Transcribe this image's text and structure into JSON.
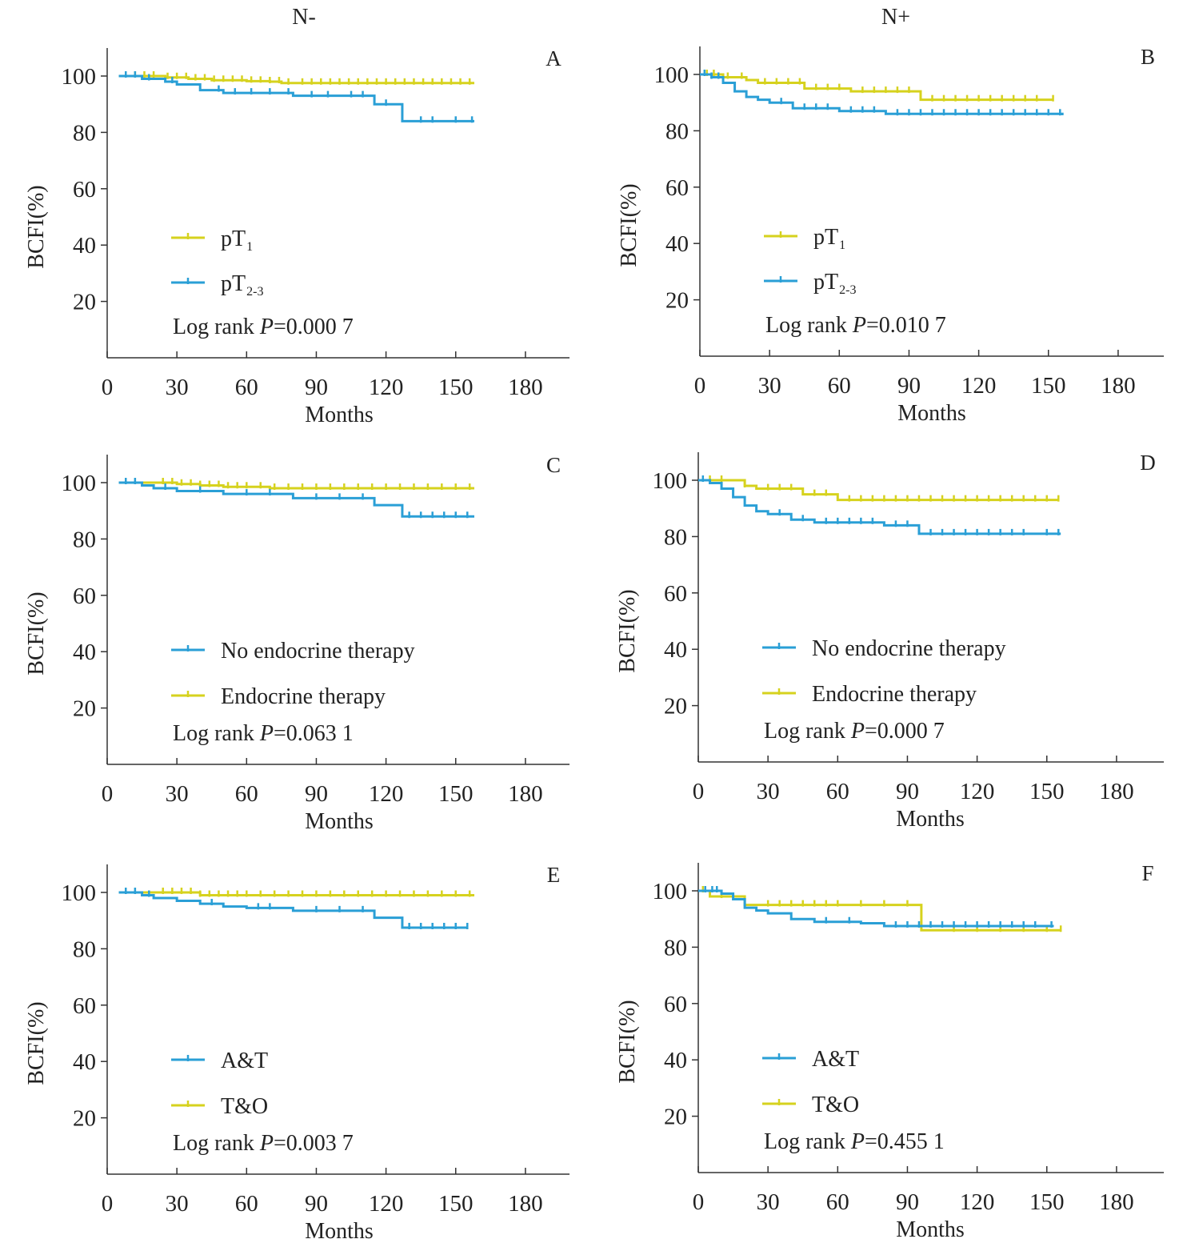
{
  "figure": {
    "column_titles": [
      "N-",
      "N+"
    ]
  },
  "colors": {
    "yellow": "#d6d21e",
    "blue": "#2a9fd6",
    "axis": "#333333"
  },
  "chart_data": [
    {
      "panel": "A",
      "type": "line",
      "step": true,
      "xlabel": "Months",
      "ylabel": "BCFI(%)",
      "xticks": [
        0,
        30,
        60,
        90,
        120,
        150,
        180
      ],
      "yticks": [
        20,
        40,
        60,
        80,
        100
      ],
      "xlim": [
        0,
        200
      ],
      "ylim": [
        0,
        110
      ],
      "pvalue": {
        "prefix": "Log rank ",
        "italic": "P",
        "value": "=0.000 7"
      },
      "legend": [
        {
          "name": "pT",
          "sub": "1",
          "color": "yellow"
        },
        {
          "name": "pT",
          "sub": "2-3",
          "color": "blue"
        }
      ],
      "series": [
        {
          "color": "yellow",
          "x": [
            5,
            15,
            25,
            35,
            45,
            60,
            70,
            75,
            80,
            158
          ],
          "y": [
            100,
            100,
            99.5,
            99,
            98.5,
            98.2,
            98,
            97.5,
            97.5,
            97.5
          ],
          "censor": [
            8,
            12,
            16,
            20,
            26,
            30,
            34,
            38,
            42,
            46,
            50,
            54,
            58,
            62,
            66,
            70,
            74,
            78,
            84,
            88,
            92,
            96,
            100,
            104,
            108,
            112,
            116,
            120,
            124,
            128,
            132,
            136,
            140,
            144,
            148,
            152,
            156
          ]
        },
        {
          "color": "blue",
          "x": [
            5,
            15,
            25,
            30,
            40,
            50,
            80,
            115,
            127,
            158
          ],
          "y": [
            100,
            99,
            98,
            97,
            95,
            94,
            93,
            90,
            84,
            84
          ],
          "censor": [
            8,
            12,
            18,
            28,
            48,
            55,
            62,
            70,
            78,
            88,
            95,
            105,
            110,
            120,
            135,
            140,
            150,
            157
          ]
        }
      ]
    },
    {
      "panel": "B",
      "type": "line",
      "step": true,
      "xlabel": "Months",
      "ylabel": "BCFI(%)",
      "xticks": [
        0,
        30,
        60,
        90,
        120,
        150,
        180
      ],
      "yticks": [
        20,
        40,
        60,
        80,
        100
      ],
      "xlim": [
        0,
        200
      ],
      "ylim": [
        0,
        110
      ],
      "pvalue": {
        "prefix": "Log rank ",
        "italic": "P",
        "value": "=0.010 7"
      },
      "legend": [
        {
          "name": "pT",
          "sub": "1",
          "color": "yellow"
        },
        {
          "name": "pT",
          "sub": "2-3",
          "color": "blue"
        }
      ],
      "series": [
        {
          "color": "yellow",
          "x": [
            0,
            10,
            20,
            25,
            45,
            65,
            95,
            152
          ],
          "y": [
            100,
            99,
            98,
            97,
            95,
            94,
            91,
            91
          ],
          "censor": [
            3,
            6,
            12,
            18,
            28,
            33,
            38,
            43,
            50,
            55,
            60,
            70,
            75,
            80,
            85,
            90,
            100,
            105,
            110,
            115,
            120,
            125,
            130,
            135,
            140,
            145,
            152
          ]
        },
        {
          "color": "blue",
          "x": [
            0,
            5,
            10,
            15,
            20,
            25,
            30,
            40,
            60,
            80,
            156
          ],
          "y": [
            100,
            99,
            97,
            94,
            92,
            91,
            90,
            88,
            87,
            86,
            85.5
          ],
          "censor": [
            2,
            5,
            8,
            35,
            45,
            50,
            55,
            65,
            70,
            75,
            85,
            90,
            95,
            100,
            105,
            110,
            115,
            120,
            125,
            130,
            135,
            140,
            145,
            150,
            155
          ]
        }
      ]
    },
    {
      "panel": "C",
      "type": "line",
      "step": true,
      "xlabel": "Months",
      "ylabel": "BCFI(%)",
      "xticks": [
        0,
        30,
        60,
        90,
        120,
        150,
        180
      ],
      "yticks": [
        20,
        40,
        60,
        80,
        100
      ],
      "xlim": [
        0,
        200
      ],
      "ylim": [
        0,
        110
      ],
      "pvalue": {
        "prefix": "Log rank ",
        "italic": "P",
        "value": "=0.063 1"
      },
      "legend": [
        {
          "name": "No endocrine therapy",
          "color": "blue"
        },
        {
          "name": "Endocrine therapy",
          "color": "yellow"
        }
      ],
      "series": [
        {
          "color": "yellow",
          "x": [
            5,
            20,
            30,
            40,
            50,
            70,
            150,
            158
          ],
          "y": [
            100,
            100,
            99.5,
            99,
            98.5,
            98,
            98,
            98
          ],
          "censor": [
            24,
            28,
            32,
            36,
            40,
            44,
            48,
            52,
            56,
            60,
            66,
            72,
            78,
            84,
            90,
            96,
            102,
            108,
            114,
            120,
            126,
            132,
            138,
            144,
            150,
            156
          ]
        },
        {
          "color": "blue",
          "x": [
            5,
            15,
            20,
            30,
            50,
            80,
            115,
            127,
            158
          ],
          "y": [
            100,
            99,
            98,
            97,
            96,
            94.5,
            92,
            88,
            88
          ],
          "censor": [
            8,
            12,
            25,
            40,
            60,
            70,
            90,
            100,
            110,
            130,
            135,
            140,
            145,
            150,
            155
          ]
        }
      ]
    },
    {
      "panel": "D",
      "type": "line",
      "step": true,
      "xlabel": "Months",
      "ylabel": "BCFI(%)",
      "xticks": [
        0,
        30,
        60,
        90,
        120,
        150,
        180
      ],
      "yticks": [
        20,
        40,
        60,
        80,
        100
      ],
      "xlim": [
        0,
        200
      ],
      "ylim": [
        0,
        110
      ],
      "pvalue": {
        "prefix": "Log rank ",
        "italic": "P",
        "value": "=0.000 7"
      },
      "legend": [
        {
          "name": "No endocrine therapy",
          "color": "blue"
        },
        {
          "name": "Endocrine therapy",
          "color": "yellow"
        }
      ],
      "series": [
        {
          "color": "yellow",
          "x": [
            0,
            15,
            20,
            25,
            45,
            60,
            155
          ],
          "y": [
            100,
            100,
            98,
            97,
            95,
            93,
            93
          ],
          "censor": [
            5,
            10,
            20,
            30,
            35,
            40,
            50,
            55,
            65,
            70,
            75,
            80,
            85,
            90,
            95,
            100,
            105,
            110,
            115,
            120,
            125,
            130,
            135,
            140,
            145,
            150,
            155
          ]
        },
        {
          "color": "blue",
          "x": [
            0,
            5,
            10,
            15,
            20,
            25,
            30,
            40,
            50,
            80,
            95,
            156
          ],
          "y": [
            100,
            99,
            97,
            94,
            91,
            89,
            88,
            86,
            85,
            84,
            81,
            81
          ],
          "censor": [
            2,
            35,
            45,
            55,
            60,
            65,
            70,
            75,
            85,
            90,
            100,
            105,
            110,
            115,
            120,
            125,
            130,
            135,
            140,
            150,
            155
          ]
        }
      ]
    },
    {
      "panel": "E",
      "type": "line",
      "step": true,
      "xlabel": "Months",
      "ylabel": "BCFI(%)",
      "xticks": [
        0,
        30,
        60,
        90,
        120,
        150,
        180
      ],
      "yticks": [
        20,
        40,
        60,
        80,
        100
      ],
      "xlim": [
        0,
        200
      ],
      "ylim": [
        0,
        110
      ],
      "pvalue": {
        "prefix": "Log rank ",
        "italic": "P",
        "value": "=0.003 7"
      },
      "legend": [
        {
          "name": "A&T",
          "color": "blue"
        },
        {
          "name": "T&O",
          "color": "yellow"
        }
      ],
      "series": [
        {
          "color": "yellow",
          "x": [
            5,
            25,
            40,
            158
          ],
          "y": [
            100,
            100,
            99,
            99
          ],
          "censor": [
            24,
            28,
            32,
            36,
            40,
            44,
            48,
            52,
            56,
            60,
            66,
            72,
            78,
            84,
            90,
            96,
            102,
            108,
            114,
            120,
            126,
            132,
            138,
            144,
            150,
            156
          ]
        },
        {
          "color": "blue",
          "x": [
            5,
            15,
            20,
            30,
            40,
            50,
            60,
            80,
            115,
            127,
            155
          ],
          "y": [
            100,
            99,
            98,
            97,
            96,
            95,
            94.5,
            93.5,
            91,
            87.5,
            87.5
          ],
          "censor": [
            8,
            12,
            18,
            45,
            65,
            70,
            90,
            100,
            110,
            130,
            135,
            140,
            145,
            150,
            155
          ]
        }
      ]
    },
    {
      "panel": "F",
      "type": "line",
      "step": true,
      "xlabel": "Months",
      "ylabel": "BCFI(%)",
      "xticks": [
        0,
        30,
        60,
        90,
        120,
        150,
        180
      ],
      "yticks": [
        20,
        40,
        60,
        80,
        100
      ],
      "xlim": [
        0,
        200
      ],
      "ylim": [
        0,
        110
      ],
      "pvalue": {
        "prefix": "Log rank ",
        "italic": "P",
        "value": "=0.455 1"
      },
      "legend": [
        {
          "name": "A&T",
          "color": "blue"
        },
        {
          "name": "T&O",
          "color": "yellow"
        }
      ],
      "series": [
        {
          "color": "yellow",
          "x": [
            0,
            5,
            20,
            96,
            156
          ],
          "y": [
            100,
            98,
            95,
            86,
            86
          ],
          "censor": [
            2,
            10,
            30,
            35,
            40,
            45,
            50,
            55,
            60,
            70,
            80,
            90,
            110,
            120,
            130,
            140,
            150,
            156
          ]
        },
        {
          "color": "blue",
          "x": [
            0,
            5,
            10,
            15,
            20,
            25,
            30,
            40,
            50,
            70,
            80,
            153
          ],
          "y": [
            100,
            100,
            99,
            97,
            94,
            93,
            92,
            90,
            89,
            88.5,
            87.5,
            87.5
          ],
          "censor": [
            3,
            6,
            8,
            55,
            65,
            85,
            90,
            95,
            100,
            105,
            110,
            115,
            120,
            125,
            130,
            135,
            140,
            145,
            152
          ]
        }
      ]
    }
  ]
}
